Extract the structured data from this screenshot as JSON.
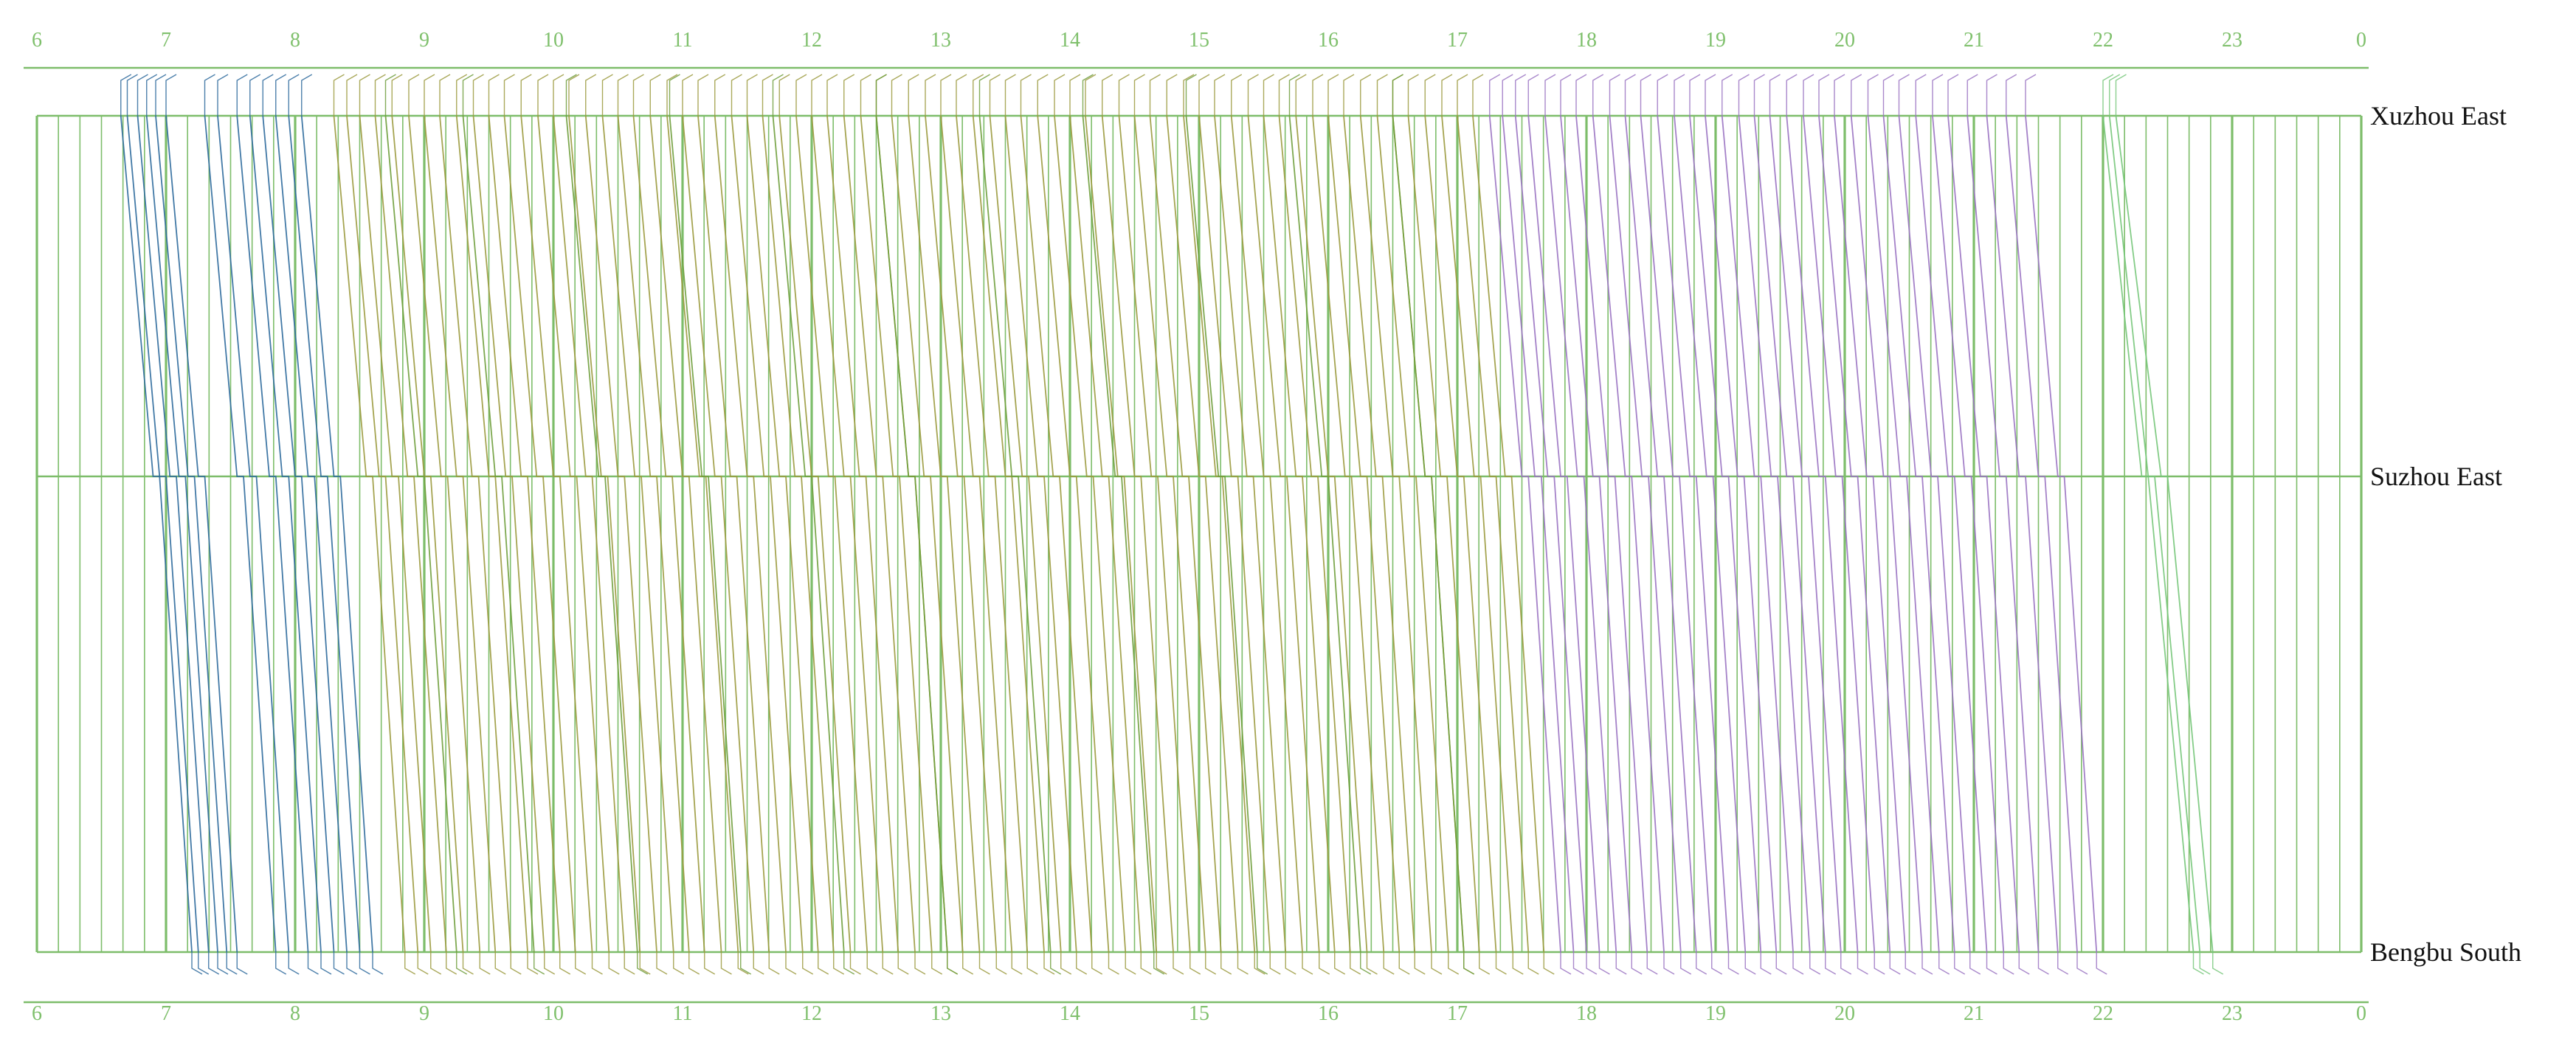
{
  "chart_data": {
    "type": "line",
    "title": "",
    "xlabel": "",
    "ylabel": "",
    "x_unit": "hour of day",
    "x_range": [
      6,
      24
    ],
    "hour_ticks": [
      "6",
      "7",
      "8",
      "9",
      "10",
      "11",
      "12",
      "13",
      "14",
      "15",
      "16",
      "17",
      "18",
      "19",
      "20",
      "21",
      "22",
      "23",
      "0"
    ],
    "stations": [
      {
        "name": "Xuzhou East",
        "mileage_km": 0
      },
      {
        "name": "Suzhou East",
        "mileage_km": 68
      },
      {
        "name": "Bengbu South",
        "mileage_km": 155
      }
    ],
    "grid": {
      "major_every_hours": 1,
      "minor_every_minutes": 10,
      "visible": true
    },
    "series": [
      {
        "color": "#2e6a9c",
        "trains": [
          [
            6.65,
            6.9,
            6.95,
            7.2
          ],
          [
            6.7,
            6.95,
            7.0,
            7.25
          ],
          [
            6.78,
            7.03,
            7.08,
            7.33
          ],
          [
            6.85,
            7.1,
            7.15,
            7.4
          ],
          [
            6.92,
            7.17,
            7.22,
            7.47
          ],
          [
            7.0,
            7.25,
            7.3,
            7.55
          ],
          [
            7.3,
            7.55,
            7.6,
            7.85
          ],
          [
            7.4,
            7.65,
            7.7,
            7.95
          ],
          [
            7.55,
            7.8,
            7.85,
            8.1
          ],
          [
            7.65,
            7.9,
            7.95,
            8.2
          ],
          [
            7.75,
            8.0,
            8.05,
            8.3
          ],
          [
            7.85,
            8.1,
            8.15,
            8.4
          ],
          [
            7.95,
            8.2,
            8.25,
            8.5
          ],
          [
            8.05,
            8.3,
            8.35,
            8.6
          ]
        ]
      },
      {
        "color": "#9b9a3e",
        "trains": [
          [
            8.3,
            8.55,
            8.6,
            8.85
          ],
          [
            8.4,
            8.65,
            8.7,
            8.95
          ],
          [
            8.5,
            8.75,
            8.8,
            9.05
          ],
          [
            8.62,
            8.87,
            8.92,
            9.17
          ],
          [
            8.75,
            9.0,
            9.05,
            9.3
          ],
          [
            8.88,
            9.13,
            9.18,
            9.43
          ],
          [
            9.0,
            9.25,
            9.3,
            9.55
          ],
          [
            9.12,
            9.37,
            9.42,
            9.67
          ],
          [
            9.25,
            9.5,
            9.55,
            9.8
          ],
          [
            9.38,
            9.63,
            9.68,
            9.93
          ],
          [
            9.5,
            9.75,
            9.8,
            10.05
          ],
          [
            9.62,
            9.87,
            9.92,
            10.17
          ],
          [
            9.75,
            10.0,
            10.05,
            10.3
          ],
          [
            9.88,
            10.13,
            10.18,
            10.43
          ],
          [
            10.0,
            10.25,
            10.3,
            10.55
          ],
          [
            10.12,
            10.37,
            10.42,
            10.67
          ],
          [
            10.25,
            10.5,
            10.55,
            10.8
          ],
          [
            10.38,
            10.63,
            10.68,
            10.93
          ],
          [
            10.5,
            10.75,
            10.8,
            11.05
          ],
          [
            10.62,
            10.87,
            10.92,
            11.17
          ],
          [
            10.75,
            11.0,
            11.05,
            11.3
          ],
          [
            10.88,
            11.13,
            11.18,
            11.43
          ],
          [
            11.0,
            11.25,
            11.3,
            11.55
          ],
          [
            11.12,
            11.37,
            11.42,
            11.67
          ],
          [
            11.25,
            11.5,
            11.55,
            11.8
          ],
          [
            11.38,
            11.63,
            11.68,
            11.93
          ],
          [
            11.5,
            11.75,
            11.8,
            12.05
          ],
          [
            11.62,
            11.87,
            11.92,
            12.17
          ],
          [
            11.75,
            12.0,
            12.05,
            12.3
          ],
          [
            11.88,
            12.13,
            12.18,
            12.43
          ],
          [
            12.0,
            12.25,
            12.3,
            12.55
          ],
          [
            12.12,
            12.37,
            12.42,
            12.67
          ],
          [
            12.25,
            12.5,
            12.55,
            12.8
          ],
          [
            12.38,
            12.63,
            12.68,
            12.93
          ],
          [
            12.5,
            12.75,
            12.8,
            13.05
          ],
          [
            12.62,
            12.87,
            12.92,
            13.17
          ],
          [
            12.75,
            13.0,
            13.05,
            13.3
          ],
          [
            12.88,
            13.13,
            13.18,
            13.43
          ],
          [
            13.0,
            13.25,
            13.3,
            13.55
          ],
          [
            13.12,
            13.37,
            13.42,
            13.67
          ],
          [
            13.25,
            13.5,
            13.55,
            13.8
          ],
          [
            13.38,
            13.63,
            13.68,
            13.93
          ],
          [
            13.5,
            13.75,
            13.8,
            14.05
          ],
          [
            13.62,
            13.87,
            13.92,
            14.17
          ],
          [
            13.75,
            14.0,
            14.05,
            14.3
          ],
          [
            13.88,
            14.13,
            14.18,
            14.43
          ],
          [
            14.0,
            14.25,
            14.3,
            14.55
          ],
          [
            14.12,
            14.37,
            14.42,
            14.67
          ],
          [
            14.25,
            14.5,
            14.55,
            14.8
          ],
          [
            14.38,
            14.63,
            14.68,
            14.93
          ],
          [
            14.5,
            14.75,
            14.8,
            15.05
          ],
          [
            14.62,
            14.87,
            14.92,
            15.17
          ],
          [
            14.75,
            15.0,
            15.05,
            15.3
          ],
          [
            14.88,
            15.13,
            15.18,
            15.43
          ],
          [
            15.0,
            15.25,
            15.3,
            15.55
          ],
          [
            15.12,
            15.37,
            15.42,
            15.67
          ],
          [
            15.25,
            15.5,
            15.55,
            15.8
          ],
          [
            15.38,
            15.63,
            15.68,
            15.93
          ],
          [
            15.5,
            15.75,
            15.8,
            16.05
          ],
          [
            15.62,
            15.87,
            15.92,
            16.17
          ],
          [
            15.75,
            16.0,
            16.05,
            16.3
          ],
          [
            15.88,
            16.13,
            16.18,
            16.43
          ],
          [
            16.0,
            16.25,
            16.3,
            16.55
          ],
          [
            16.12,
            16.37,
            16.42,
            16.67
          ],
          [
            16.25,
            16.5,
            16.55,
            16.8
          ],
          [
            16.38,
            16.63,
            16.68,
            16.93
          ],
          [
            16.5,
            16.75,
            16.8,
            17.05
          ],
          [
            16.62,
            16.87,
            16.92,
            17.17
          ],
          [
            16.75,
            17.0,
            17.05,
            17.3
          ],
          [
            16.88,
            17.13,
            17.18,
            17.43
          ],
          [
            17.0,
            17.25,
            17.3,
            17.55
          ],
          [
            17.12,
            17.37,
            17.42,
            17.67
          ]
        ]
      },
      {
        "color": "#6f9e3c",
        "trains": [
          [
            8.7,
            8.95,
            9.0,
            9.25
          ],
          [
            9.3,
            9.55,
            9.6,
            9.85
          ],
          [
            10.1,
            10.35,
            10.4,
            10.65
          ],
          [
            10.9,
            11.15,
            11.2,
            11.45
          ],
          [
            11.7,
            11.95,
            12.0,
            12.25
          ],
          [
            12.5,
            12.75,
            12.8,
            13.05
          ],
          [
            13.3,
            13.55,
            13.6,
            13.85
          ],
          [
            14.1,
            14.35,
            14.4,
            14.65
          ],
          [
            14.9,
            15.15,
            15.2,
            15.45
          ],
          [
            15.7,
            15.95,
            16.0,
            16.25
          ],
          [
            16.5,
            16.75,
            16.8,
            17.05
          ]
        ]
      },
      {
        "color": "#9a73c2",
        "trains": [
          [
            17.25,
            17.5,
            17.55,
            17.8
          ],
          [
            17.35,
            17.6,
            17.65,
            17.9
          ],
          [
            17.45,
            17.7,
            17.75,
            18.0
          ],
          [
            17.55,
            17.8,
            17.85,
            18.1
          ],
          [
            17.68,
            17.93,
            17.98,
            18.23
          ],
          [
            17.8,
            18.05,
            18.1,
            18.35
          ],
          [
            17.92,
            18.17,
            18.22,
            18.47
          ],
          [
            18.05,
            18.3,
            18.35,
            18.6
          ],
          [
            18.18,
            18.43,
            18.48,
            18.73
          ],
          [
            18.3,
            18.55,
            18.6,
            18.85
          ],
          [
            18.42,
            18.67,
            18.72,
            18.97
          ],
          [
            18.55,
            18.8,
            18.85,
            19.1
          ],
          [
            18.68,
            18.93,
            18.98,
            19.23
          ],
          [
            18.8,
            19.05,
            19.1,
            19.35
          ],
          [
            18.92,
            19.17,
            19.22,
            19.47
          ],
          [
            19.05,
            19.3,
            19.35,
            19.6
          ],
          [
            19.18,
            19.43,
            19.48,
            19.73
          ],
          [
            19.3,
            19.55,
            19.6,
            19.85
          ],
          [
            19.42,
            19.67,
            19.72,
            19.97
          ],
          [
            19.55,
            19.8,
            19.85,
            20.1
          ],
          [
            19.68,
            19.93,
            19.98,
            20.23
          ],
          [
            19.8,
            20.05,
            20.1,
            20.35
          ],
          [
            19.92,
            20.17,
            20.22,
            20.47
          ],
          [
            20.05,
            20.3,
            20.35,
            20.6
          ],
          [
            20.18,
            20.43,
            20.48,
            20.73
          ],
          [
            20.3,
            20.55,
            20.6,
            20.85
          ],
          [
            20.42,
            20.67,
            20.72,
            20.97
          ],
          [
            20.55,
            20.8,
            20.85,
            21.1
          ],
          [
            20.68,
            20.93,
            20.98,
            21.23
          ],
          [
            20.8,
            21.05,
            21.1,
            21.35
          ],
          [
            20.95,
            21.2,
            21.25,
            21.5
          ],
          [
            21.1,
            21.35,
            21.4,
            21.65
          ],
          [
            21.25,
            21.5,
            21.55,
            21.8
          ],
          [
            21.4,
            21.65,
            21.7,
            21.95
          ]
        ]
      },
      {
        "color": "#77c77a",
        "trains": [
          [
            22.0,
            22.3,
            22.35,
            22.7
          ],
          [
            22.05,
            22.35,
            22.4,
            22.75
          ],
          [
            22.1,
            22.45,
            22.5,
            22.85
          ]
        ]
      }
    ]
  }
}
